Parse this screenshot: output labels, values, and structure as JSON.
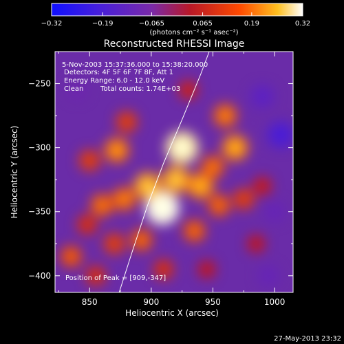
{
  "chart_data": {
    "type": "heatmap",
    "title": "Reconstructed RHESSI Image",
    "xlabel": "Heliocentric X (arcsec)",
    "ylabel": "Heliocentric Y (arcsec)",
    "xlim": [
      822,
      1015
    ],
    "ylim": [
      -413,
      -225
    ],
    "x_ticks": [
      850,
      900,
      950,
      1000
    ],
    "y_ticks": [
      -250,
      -300,
      -350,
      -400
    ],
    "colorbar": {
      "unit_label": "(photons cm⁻² s⁻¹ asec⁻²)",
      "range": [
        -0.32,
        0.32
      ],
      "ticks": [
        "-0.32",
        "-0.19",
        "-0.065",
        "0.065",
        "0.19",
        "0.32"
      ]
    },
    "annotations": {
      "time_range": "5-Nov-2003 15:37:36.000 to 15:38:20.000",
      "detectors": "Detectors: 4F 5F 6F 7F 8F, Att 1",
      "energy_range": "Energy Range: 6.0 - 12.0 keV",
      "method": "Clean",
      "total_counts": "Total counts: 1.74E+03",
      "peak": "Position of Peak = [909,-347]"
    },
    "peak_position": [
      909,
      -347
    ],
    "limb_curve": [
      [
        874,
        -413
      ],
      [
        885,
        -380
      ],
      [
        897,
        -345
      ],
      [
        910,
        -312
      ],
      [
        925,
        -278
      ],
      [
        940,
        -243
      ],
      [
        947,
        -225
      ]
    ],
    "sources": [
      {
        "x": 909,
        "y": -347,
        "value": 0.32
      },
      {
        "x": 925,
        "y": -300,
        "value": 0.3
      },
      {
        "x": 920,
        "y": -325,
        "value": 0.22
      },
      {
        "x": 897,
        "y": -330,
        "value": 0.22
      },
      {
        "x": 940,
        "y": -330,
        "value": 0.2
      },
      {
        "x": 968,
        "y": -300,
        "value": 0.2
      },
      {
        "x": 960,
        "y": -275,
        "value": 0.16
      },
      {
        "x": 872,
        "y": -302,
        "value": 0.18
      },
      {
        "x": 880,
        "y": -280,
        "value": 0.12
      },
      {
        "x": 878,
        "y": -340,
        "value": 0.16
      },
      {
        "x": 860,
        "y": -345,
        "value": 0.15
      },
      {
        "x": 850,
        "y": -310,
        "value": 0.12
      },
      {
        "x": 848,
        "y": -360,
        "value": 0.1
      },
      {
        "x": 870,
        "y": -375,
        "value": 0.12
      },
      {
        "x": 892,
        "y": -372,
        "value": 0.14
      },
      {
        "x": 935,
        "y": -365,
        "value": 0.14
      },
      {
        "x": 955,
        "y": -345,
        "value": 0.14
      },
      {
        "x": 975,
        "y": -340,
        "value": 0.12
      },
      {
        "x": 950,
        "y": -315,
        "value": 0.15
      },
      {
        "x": 990,
        "y": -330,
        "value": 0.07
      },
      {
        "x": 985,
        "y": -375,
        "value": 0.06
      },
      {
        "x": 835,
        "y": -385,
        "value": 0.13
      },
      {
        "x": 855,
        "y": -400,
        "value": 0.1
      },
      {
        "x": 910,
        "y": -395,
        "value": 0.1
      },
      {
        "x": 945,
        "y": -395,
        "value": 0.06
      },
      {
        "x": 930,
        "y": -255,
        "value": 0.08
      },
      {
        "x": 990,
        "y": -260,
        "value": -0.15
      },
      {
        "x": 1005,
        "y": -290,
        "value": -0.2
      },
      {
        "x": 840,
        "y": -255,
        "value": -0.1
      },
      {
        "x": 995,
        "y": -400,
        "value": -0.12
      },
      {
        "x": 1000,
        "y": -350,
        "value": -0.12
      }
    ]
  },
  "timestamp": "27-May-2013 23:32"
}
